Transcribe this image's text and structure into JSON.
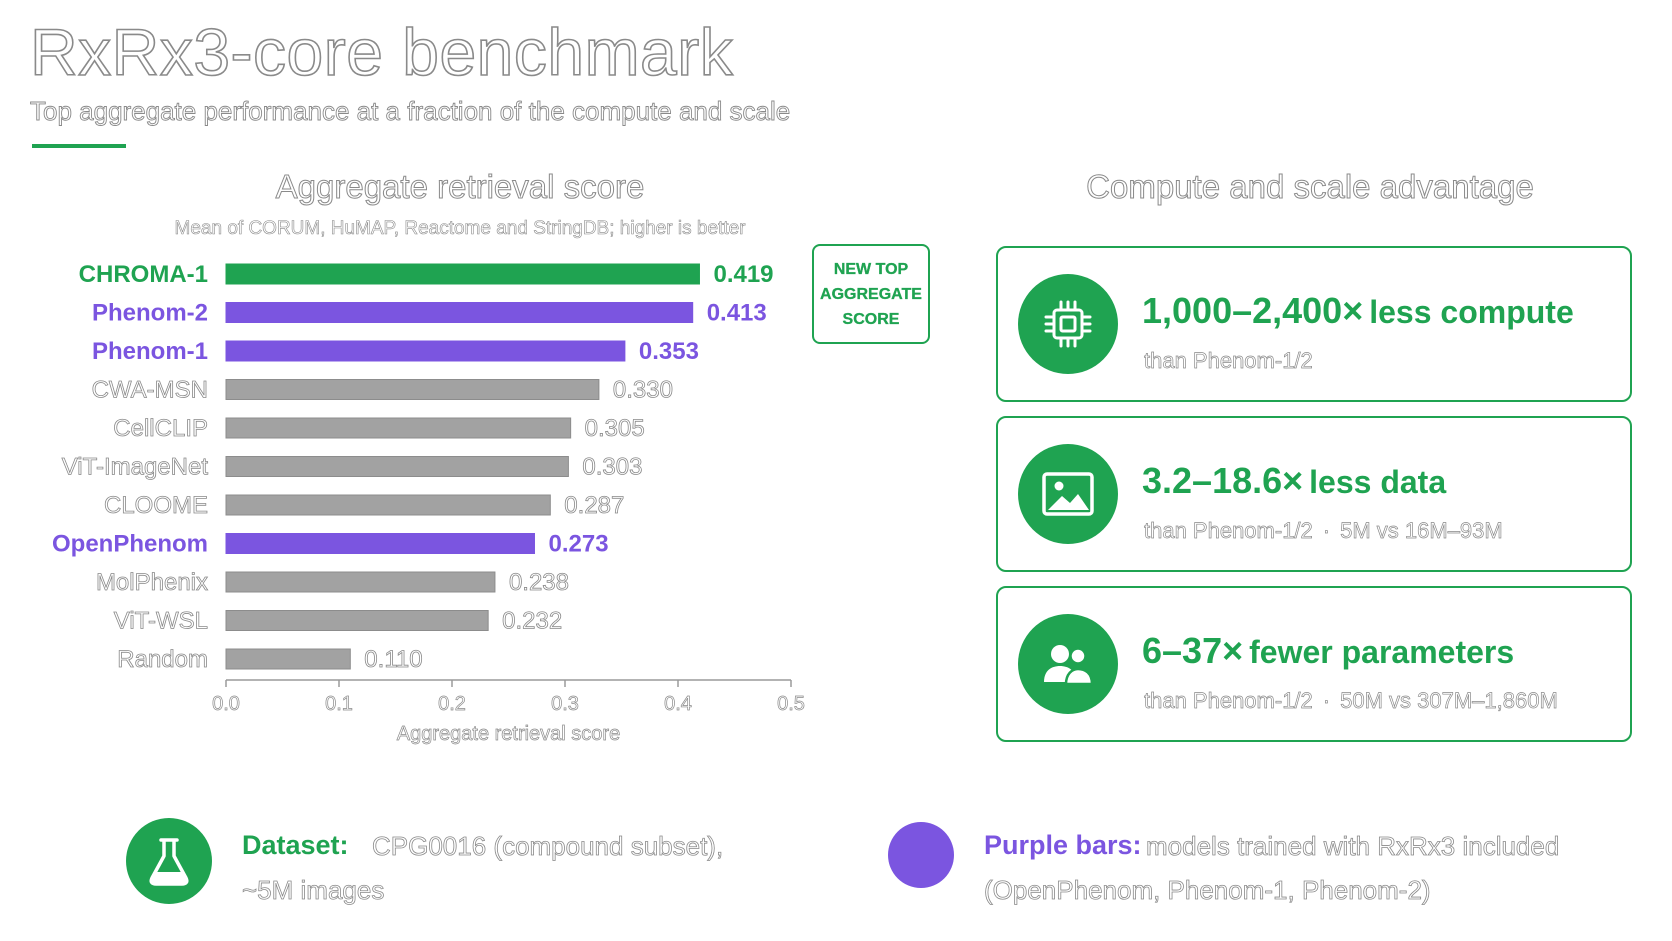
{
  "header": {
    "title": "RxRx3-core benchmark",
    "subtitle": "Top aggregate performance at a fraction of the compute and scale"
  },
  "colors": {
    "green": "#1fa351",
    "purple": "#7b55e0",
    "gray": "#a2a2a2"
  },
  "chart_data": {
    "type": "bar",
    "orientation": "horizontal",
    "title": "Aggregate retrieval score",
    "subtitle": "Mean of CORUM, HuMAP, Reactome and StringDB; higher is better",
    "xlabel": "Aggregate retrieval score",
    "xlim": [
      0.0,
      0.5
    ],
    "xticks": [
      "0.0",
      "0.1",
      "0.2",
      "0.3",
      "0.4",
      "0.5"
    ],
    "grid": false,
    "categories": [
      "CHROMA-1",
      "Phenom-2",
      "Phenom-1",
      "CWA-MSN",
      "CellCLIP",
      "ViT-ImageNet",
      "CLOOME",
      "OpenPhenom",
      "MolPhenix",
      "ViT-WSL",
      "Random"
    ],
    "values": [
      0.419,
      0.413,
      0.353,
      0.33,
      0.305,
      0.303,
      0.287,
      0.273,
      0.238,
      0.232,
      0.11
    ],
    "value_labels": [
      "0.419",
      "0.413",
      "0.353",
      "0.330",
      "0.305",
      "0.303",
      "0.287",
      "0.273",
      "0.238",
      "0.232",
      "0.110"
    ],
    "bar_groups": [
      "green",
      "purple",
      "purple",
      "gray",
      "gray",
      "gray",
      "gray",
      "purple",
      "gray",
      "gray",
      "gray"
    ]
  },
  "badge": {
    "lines": [
      "NEW TOP",
      "AGGREGATE",
      "SCORE"
    ]
  },
  "advantage": {
    "heading": "Compute and scale advantage",
    "cards": [
      {
        "icon": "cpu-chip-icon",
        "number": "1,000–2,400×",
        "headline": "less compute",
        "detail": "than Phenom-1/2",
        "detail_extra": ""
      },
      {
        "icon": "image-icon",
        "number": "3.2–18.6×",
        "headline": "less data",
        "detail": "than Phenom-1/2",
        "detail_extra": "5M vs 16M–93M"
      },
      {
        "icon": "users-icon",
        "number": "6–37×",
        "headline": "fewer parameters",
        "detail": "than Phenom-1/2",
        "detail_extra": "50M vs 307M–1,860M"
      }
    ]
  },
  "footer": {
    "dataset": {
      "icon": "flask-icon",
      "label": "Dataset:",
      "text_line1": "CPG0016 (compound subset),",
      "text_line2": "~5M images"
    },
    "legend": {
      "label": "Purple bars:",
      "text_line1": "models trained with RxRx3 included",
      "text_line2": "(OpenPhenom, Phenom-1, Phenom-2)"
    }
  }
}
